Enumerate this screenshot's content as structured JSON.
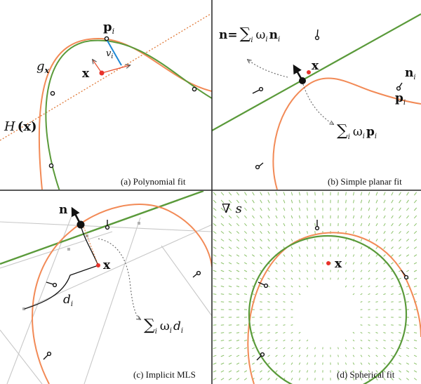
{
  "colors": {
    "curve": "#f28a56",
    "fit": "#5a9a3a",
    "field": "#8cc26a",
    "vector": "#1e88d6",
    "point": "#e8322a",
    "construction": "#c8c8c8",
    "divider": "#222222"
  },
  "panels": {
    "a": {
      "caption": "(a) Polynomial fit",
      "label_g": "g",
      "label_g_sub": "x",
      "label_H": "H",
      "label_H_arg": "(x)",
      "label_p": "p",
      "label_p_sub": "i",
      "label_v": "v",
      "label_v_sub": "i",
      "label_x": "x"
    },
    "b": {
      "caption": "(b) Simple planar fit",
      "eq_n_lhs": "n=",
      "eq_n_sum": "∑",
      "eq_n_sum_sub": "i",
      "eq_n_w": "ω",
      "eq_n_w_sub": "i",
      "eq_n_term": "n",
      "eq_n_term_sub": "i",
      "eq_p_sum": "∑",
      "eq_p_sum_sub": "i",
      "eq_p_w": "ω",
      "eq_p_w_sub": "i",
      "eq_p_term": "p",
      "eq_p_term_sub": "i",
      "label_x": "x",
      "label_n": "n",
      "label_n_sub": "i",
      "label_p": "p",
      "label_p_sub": "i"
    },
    "c": {
      "caption": "(c) Implicit MLS",
      "label_n": "n",
      "label_x": "x",
      "label_d": "d",
      "label_d_sub": "i",
      "eq_sum": "∑",
      "eq_sum_sub": "i",
      "eq_w": "ω",
      "eq_w_sub": "i",
      "eq_d": "d",
      "eq_d_sub": "i"
    },
    "d": {
      "caption": "(d) Spherical fit",
      "label_grad": "∇",
      "label_s": "s",
      "label_x": "x"
    }
  }
}
